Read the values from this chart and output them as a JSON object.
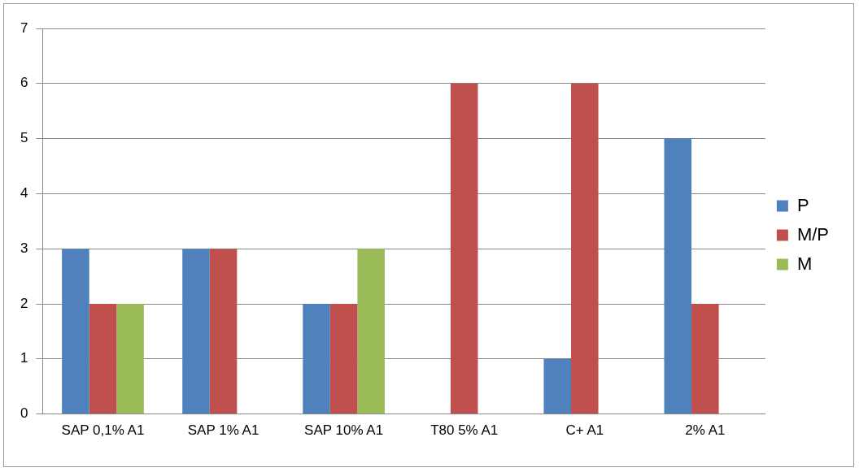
{
  "chart_data": {
    "type": "bar",
    "categories": [
      "SAP 0,1% A1",
      "SAP 1% A1",
      "SAP 10% A1",
      "T80 5% A1",
      "C+ A1",
      "2% A1"
    ],
    "series": [
      {
        "name": "P",
        "color": "#4f81bd",
        "values": [
          3,
          3,
          2,
          0,
          1,
          5
        ]
      },
      {
        "name": "M/P",
        "color": "#c0504d",
        "values": [
          2,
          3,
          2,
          6,
          6,
          2
        ]
      },
      {
        "name": "M",
        "color": "#9bbb59",
        "values": [
          2,
          0,
          3,
          0,
          0,
          0
        ]
      }
    ],
    "ylim": [
      0,
      7
    ],
    "yticks": [
      0,
      1,
      2,
      3,
      4,
      5,
      6,
      7
    ],
    "grid": "y",
    "legend": "right"
  }
}
